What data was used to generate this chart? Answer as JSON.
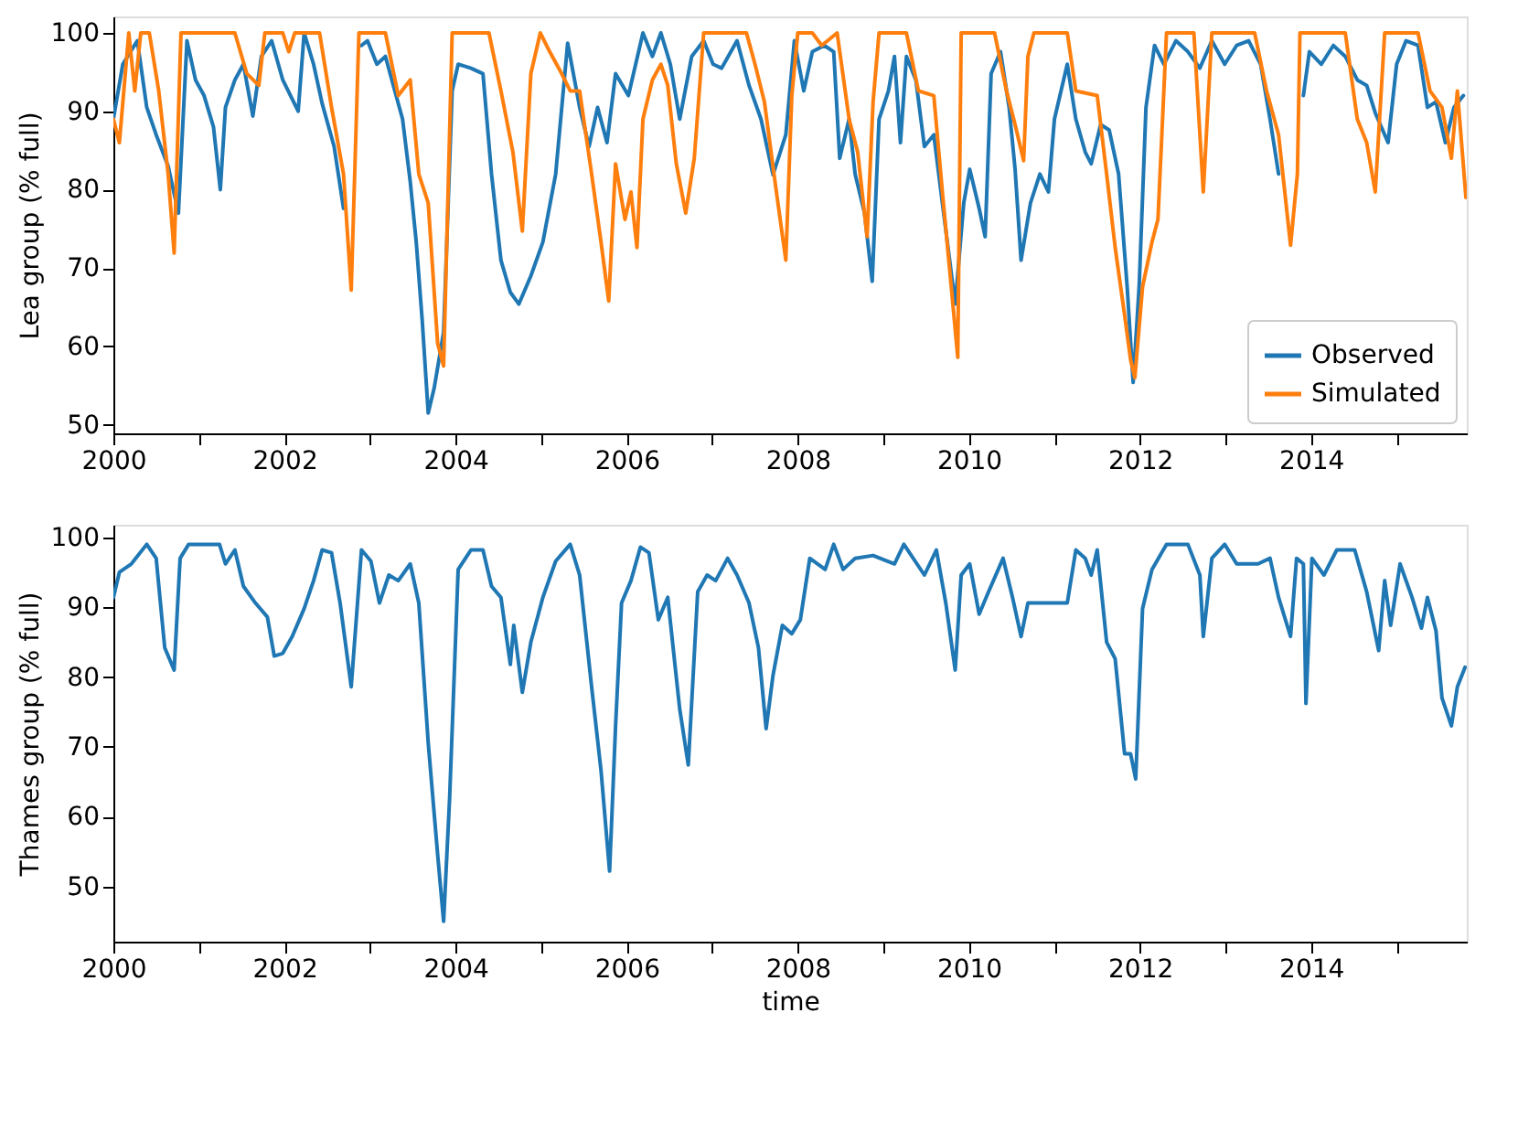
{
  "chart_data": [
    {
      "type": "line",
      "ylabel": "Lea group (% full)",
      "xlim": [
        2000,
        2015.82
      ],
      "ylim": [
        48.9,
        102.1
      ],
      "xticks": [
        2000,
        {
          "value": 2001,
          "label": null
        },
        2002,
        {
          "value": 2003,
          "label": null
        },
        2004,
        {
          "value": 2005,
          "label": null
        },
        2006,
        {
          "value": 2007,
          "label": null
        },
        2008,
        {
          "value": 2009,
          "label": null
        },
        2010,
        {
          "value": 2011,
          "label": null
        },
        2012,
        {
          "value": 2013,
          "label": null
        },
        2014,
        {
          "value": 2015,
          "label": null
        }
      ],
      "yticks": [
        50,
        60,
        70,
        80,
        90,
        100
      ],
      "grid": false,
      "legend": "bottom right",
      "marker": "none",
      "line_style": "solid",
      "series": [
        {
          "name": "Observed",
          "color": "#1f77b4",
          "x": [
            2000.0,
            2000.11,
            2000.28,
            2000.39,
            2000.5,
            2000.64,
            2000.76,
            2000.86,
            2000.96,
            2001.06,
            2001.17,
            2001.25,
            2001.31,
            2001.42,
            2001.52,
            2001.63,
            2001.73,
            2001.85,
            2001.98,
            2002.16,
            2002.23,
            2002.34,
            2002.44,
            2002.58,
            2002.69,
            2002.78,
            2002.9,
            2002.97,
            2003.08,
            2003.18,
            2003.29,
            2003.38,
            2003.47,
            2003.54,
            2003.61,
            2003.68,
            2003.75,
            2003.86,
            2003.96,
            2004.03,
            2004.18,
            2004.32,
            2004.42,
            2004.53,
            2004.64,
            2004.74,
            2004.88,
            2005.02,
            2005.17,
            2005.31,
            2005.45,
            2005.56,
            2005.66,
            2005.77,
            2005.87,
            2006.02,
            2006.19,
            2006.3,
            2006.4,
            2006.51,
            2006.62,
            2006.76,
            2006.9,
            2007.01,
            2007.11,
            2007.29,
            2007.43,
            2007.57,
            2007.71,
            2007.86,
            2007.96,
            2008.07,
            2008.17,
            2008.31,
            2008.42,
            2008.49,
            2008.6,
            2008.67,
            2008.78,
            2008.87,
            2008.95,
            2009.06,
            2009.13,
            2009.2,
            2009.27,
            2009.38,
            2009.48,
            2009.59,
            2009.69,
            2009.84,
            2009.94,
            2010.01,
            2010.12,
            2010.19,
            2010.26,
            2010.37,
            2010.47,
            2010.54,
            2010.61,
            2010.72,
            2010.83,
            2010.93,
            2011.0,
            2011.15,
            2011.25,
            2011.36,
            2011.43,
            2011.54,
            2011.64,
            2011.75,
            2011.85,
            2011.92,
            2011.99,
            2012.07,
            2012.17,
            2012.28,
            2012.42,
            2012.56,
            2012.7,
            2012.84,
            2012.99,
            2013.13,
            2013.27,
            2013.41,
            2013.52,
            2013.62,
            2013.76,
            2013.91,
            2013.98,
            2014.12,
            2014.26,
            2014.4,
            2014.54,
            2014.65,
            2014.75,
            2014.9,
            2015.0,
            2015.11,
            2015.25,
            2015.36,
            2015.46,
            2015.57,
            2015.67,
            2015.78
          ],
          "values": [
            89,
            96,
            99,
            90.5,
            87,
            83,
            77,
            99,
            94,
            92,
            88,
            80,
            90.5,
            94,
            96,
            89.4,
            97,
            99,
            94,
            90,
            100,
            96,
            91,
            85.5,
            77.6,
            null,
            98.4,
            99,
            96,
            97,
            92.6,
            89,
            81,
            73.3,
            63.3,
            51.5,
            54.7,
            61.8,
            92.6,
            96,
            95.5,
            94.8,
            82,
            71,
            66.9,
            65.4,
            69,
            73.3,
            82,
            98.7,
            90.5,
            85.5,
            90.5,
            86,
            94.8,
            92,
            100,
            97,
            100,
            96,
            89,
            97,
            99,
            96,
            95.5,
            99,
            93.3,
            89,
            81.9,
            87,
            99,
            92.6,
            97.6,
            98.4,
            97.6,
            84,
            89,
            82,
            77,
            68.3,
            89,
            92.6,
            97,
            86,
            97,
            94,
            85.5,
            87,
            78.3,
            65.4,
            78.3,
            82.6,
            77.6,
            74,
            94.8,
            97.6,
            90.5,
            82.6,
            71,
            78.3,
            82,
            79.7,
            89,
            96,
            89,
            84.8,
            83.3,
            88.3,
            87.6,
            82,
            67.6,
            55.4,
            67.6,
            90.5,
            98.4,
            96,
            99,
            97.6,
            95.5,
            99,
            96,
            98.4,
            99,
            96,
            89,
            82,
            null,
            92,
            97.6,
            96,
            98.4,
            97,
            94,
            93.3,
            89.8,
            86,
            96,
            99,
            98.4,
            90.5,
            91.2,
            86,
            90.5,
            92
          ]
        },
        {
          "name": "Simulated",
          "color": "#ff7f0e",
          "x": [
            2000.0,
            2000.07,
            2000.18,
            2000.25,
            2000.32,
            2000.42,
            2000.53,
            2000.64,
            2000.71,
            2000.79,
            2001.42,
            2001.56,
            2001.7,
            2001.77,
            2001.98,
            2002.05,
            2002.12,
            2002.41,
            2002.55,
            2002.69,
            2002.78,
            2002.87,
            2003.18,
            2003.33,
            2003.47,
            2003.57,
            2003.68,
            2003.79,
            2003.86,
            2003.96,
            2004.39,
            2004.53,
            2004.67,
            2004.78,
            2004.88,
            2004.99,
            2005.1,
            2005.24,
            2005.34,
            2005.45,
            2005.59,
            2005.7,
            2005.79,
            2005.87,
            2005.98,
            2006.05,
            2006.12,
            2006.19,
            2006.3,
            2006.4,
            2006.48,
            2006.58,
            2006.69,
            2006.79,
            2006.9,
            2007.4,
            2007.5,
            2007.61,
            2007.75,
            2007.86,
            2007.93,
            2008.0,
            2008.17,
            2008.28,
            2008.46,
            2008.6,
            2008.7,
            2008.81,
            2008.88,
            2008.95,
            2009.27,
            2009.41,
            2009.59,
            2009.69,
            2009.8,
            2009.87,
            2009.91,
            2010.3,
            2010.44,
            2010.54,
            2010.64,
            2010.69,
            2010.76,
            2011.15,
            2011.25,
            2011.5,
            2011.61,
            2011.71,
            2011.82,
            2011.89,
            2011.94,
            2012.03,
            2012.14,
            2012.21,
            2012.31,
            2012.63,
            2012.74,
            2012.84,
            2013.34,
            2013.48,
            2013.62,
            2013.76,
            2013.84,
            2013.87,
            2014.4,
            2014.54,
            2014.65,
            2014.75,
            2014.86,
            2015.25,
            2015.39,
            2015.53,
            2015.64,
            2015.71,
            2015.81
          ],
          "values": [
            89,
            86,
            100,
            92.6,
            100,
            100,
            92.6,
            82,
            71.9,
            100,
            100,
            94.8,
            93.3,
            100,
            100,
            97.6,
            100,
            100,
            90.5,
            82,
            67.2,
            100,
            100,
            92,
            94,
            82,
            78.3,
            60.4,
            57.5,
            100,
            100,
            92.6,
            84.8,
            74.7,
            94.8,
            100,
            97.6,
            94.8,
            92.6,
            92.6,
            82,
            73.3,
            65.8,
            83.3,
            76.2,
            79.7,
            72.6,
            89,
            94,
            96,
            93.3,
            83.3,
            77,
            84,
            100,
            100,
            96,
            91.2,
            79.7,
            71,
            92,
            100,
            100,
            98.4,
            100,
            89,
            84.8,
            74,
            91.2,
            100,
            100,
            92.6,
            92,
            79.7,
            66.9,
            58.6,
            100,
            100,
            92.6,
            88.3,
            83.7,
            97,
            100,
            100,
            92.6,
            92,
            82,
            72.6,
            64,
            58.3,
            56,
            67.6,
            73.3,
            76.2,
            100,
            100,
            79.7,
            100,
            100,
            92.6,
            87,
            72.9,
            82,
            100,
            100,
            89,
            86,
            79.7,
            100,
            100,
            92.6,
            90.5,
            84,
            92.6,
            79
          ]
        }
      ]
    },
    {
      "type": "line",
      "ylabel": "Thames group (% full)",
      "xlabel": "time",
      "xlim": [
        2000,
        2015.82
      ],
      "ylim": [
        42.1,
        101.8
      ],
      "xticks": [
        2000,
        {
          "value": 2001,
          "label": null
        },
        2002,
        {
          "value": 2003,
          "label": null
        },
        2004,
        {
          "value": 2005,
          "label": null
        },
        2006,
        {
          "value": 2007,
          "label": null
        },
        2008,
        {
          "value": 2009,
          "label": null
        },
        2010,
        {
          "value": 2011,
          "label": null
        },
        2012,
        {
          "value": 2013,
          "label": null
        },
        2014,
        {
          "value": 2015,
          "label": null
        }
      ],
      "yticks": [
        50,
        60,
        70,
        80,
        90,
        100
      ],
      "grid": false,
      "legend": false,
      "marker": "none",
      "line_style": "solid",
      "series": [
        {
          "color": "#1f77b4",
          "x": [
            2000.0,
            2000.07,
            2000.21,
            2000.39,
            2000.5,
            2000.6,
            2000.71,
            2000.78,
            2000.88,
            2001.06,
            2001.24,
            2001.31,
            2001.42,
            2001.52,
            2001.66,
            2001.8,
            2001.88,
            2001.98,
            2002.09,
            2002.23,
            2002.34,
            2002.44,
            2002.55,
            2002.65,
            2002.78,
            2002.9,
            2003.01,
            2003.11,
            2003.22,
            2003.33,
            2003.47,
            2003.57,
            2003.68,
            2003.79,
            2003.86,
            2003.93,
            2004.03,
            2004.18,
            2004.32,
            2004.42,
            2004.53,
            2004.64,
            2004.68,
            2004.78,
            2004.88,
            2005.02,
            2005.17,
            2005.34,
            2005.45,
            2005.59,
            2005.7,
            2005.8,
            2005.87,
            2005.94,
            2006.05,
            2006.16,
            2006.26,
            2006.37,
            2006.48,
            2006.62,
            2006.72,
            2006.83,
            2006.94,
            2007.04,
            2007.18,
            2007.29,
            2007.43,
            2007.54,
            2007.63,
            2007.71,
            2007.82,
            2007.93,
            2008.03,
            2008.14,
            2008.32,
            2008.42,
            2008.53,
            2008.67,
            2008.88,
            2009.13,
            2009.24,
            2009.48,
            2009.62,
            2009.73,
            2009.84,
            2009.91,
            2010.01,
            2010.12,
            2010.23,
            2010.4,
            2010.51,
            2010.61,
            2010.69,
            2010.86,
            2011.15,
            2011.25,
            2011.36,
            2011.43,
            2011.5,
            2011.61,
            2011.71,
            2011.82,
            2011.89,
            2011.95,
            2012.03,
            2012.14,
            2012.31,
            2012.56,
            2012.7,
            2012.74,
            2012.84,
            2012.99,
            2013.13,
            2013.38,
            2013.52,
            2013.62,
            2013.76,
            2013.83,
            2013.91,
            2013.94,
            2014.01,
            2014.15,
            2014.3,
            2014.51,
            2014.65,
            2014.79,
            2014.86,
            2014.93,
            2015.04,
            2015.18,
            2015.29,
            2015.36,
            2015.46,
            2015.53,
            2015.64,
            2015.71,
            2015.8
          ],
          "values": [
            91.4,
            95,
            96.2,
            99,
            97,
            84.2,
            81,
            97,
            99,
            99,
            99,
            96.2,
            98.2,
            93,
            90.6,
            88.6,
            83,
            83.4,
            85.8,
            89.8,
            93.8,
            98.2,
            97.8,
            90.6,
            78.6,
            98.2,
            96.6,
            90.6,
            94.6,
            93.8,
            96.2,
            90.6,
            70.6,
            54.6,
            45,
            62.6,
            95.4,
            98.2,
            98.2,
            93,
            91.4,
            81.8,
            87.4,
            77.8,
            85,
            91.4,
            96.6,
            99,
            94.6,
            78.6,
            66.6,
            52.2,
            73,
            90.6,
            93.8,
            98.6,
            97.8,
            88.2,
            91.4,
            75.4,
            67.4,
            92.2,
            94.6,
            93.8,
            97,
            94.6,
            90.6,
            84.2,
            72.6,
            80.2,
            87.4,
            86.2,
            88.2,
            97,
            95.4,
            99,
            95.4,
            97,
            97.4,
            96.2,
            99,
            94.6,
            98.2,
            90.6,
            81,
            94.6,
            96.2,
            89,
            92.2,
            97,
            91.4,
            85.8,
            90.6,
            90.6,
            90.6,
            98.2,
            97,
            94.6,
            98.2,
            85,
            82.6,
            69,
            69,
            65.4,
            89.8,
            95.4,
            99,
            99,
            94.6,
            85.8,
            97,
            99,
            96.2,
            96.2,
            97,
            91.4,
            85.8,
            97,
            96.2,
            76.2,
            97,
            94.6,
            98.2,
            98.2,
            92.2,
            83.8,
            93.8,
            87.4,
            96.2,
            91.4,
            87,
            91.4,
            86.6,
            77,
            73,
            78.6,
            81.4
          ]
        }
      ]
    }
  ]
}
